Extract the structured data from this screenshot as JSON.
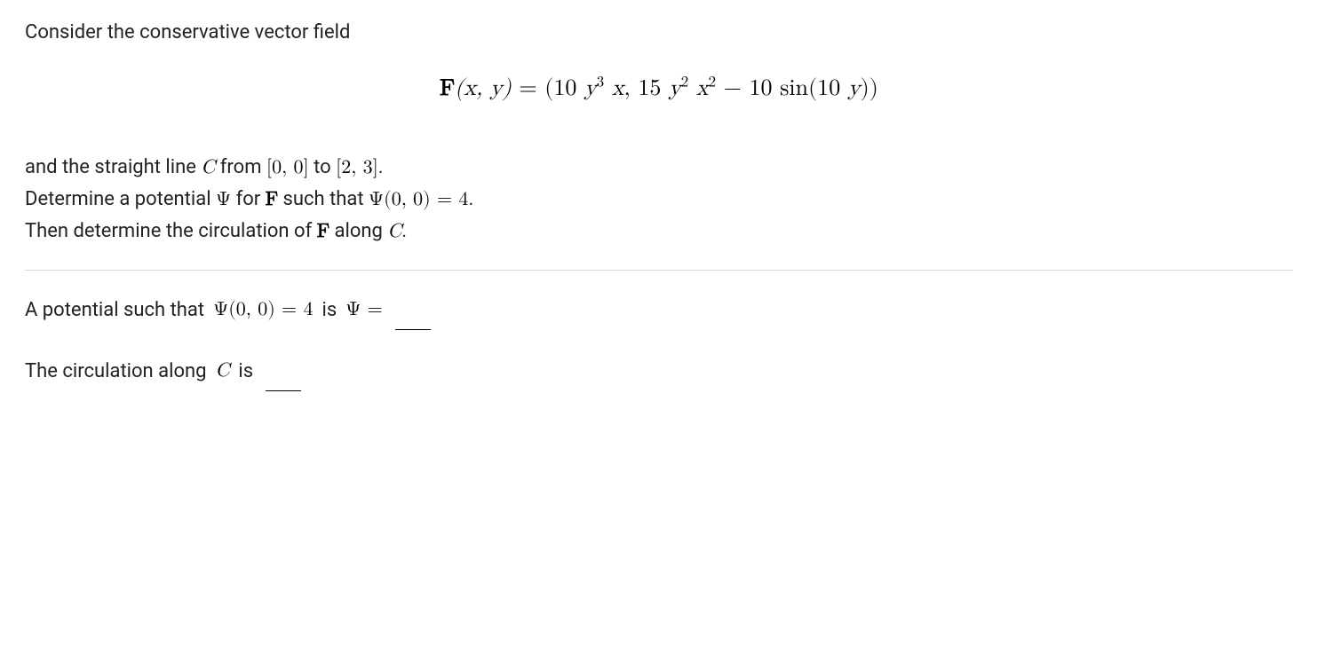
{
  "intro": "Consider the conservative vector field",
  "formula": {
    "lhs_F": "F",
    "args": "(x, y)",
    "eq": " = ",
    "open": "(",
    "term1_coeff": "10 ",
    "y": "y",
    "sup3": "3",
    "x": " x",
    "sep": ", ",
    "term2_coeff": "15 ",
    "sup2_a": "2",
    "x2": " x",
    "sup2_b": "2",
    "minus": " − 10 sin(10 ",
    "y2": "y",
    "close": "))"
  },
  "body": {
    "line1_pre": "and the straight line ",
    "C": "C",
    "line1_mid": " from ",
    "pt1": "[0, 0]",
    "to": " to ",
    "pt2": "[2, 3]",
    "line1_end": ".",
    "line2_pre": "Determine a potential ",
    "Psi": "Ψ",
    "line2_mid": " for ",
    "F": "F",
    "line2_mid2": " such that ",
    "PsiArgs": "Ψ(0, 0) = 4",
    "line2_end": ".",
    "line3_pre": "Then determine the circulation of ",
    "line3_mid": " along ",
    "line3_end": "."
  },
  "answers": {
    "a1_pre": "A potential such that ",
    "a1_math": "Ψ(0, 0) = 4",
    "a1_is": " is ",
    "a1_psi_eq": "Ψ =",
    "a2_pre": "The circulation along ",
    "C": "C",
    "a2_is": " is"
  }
}
